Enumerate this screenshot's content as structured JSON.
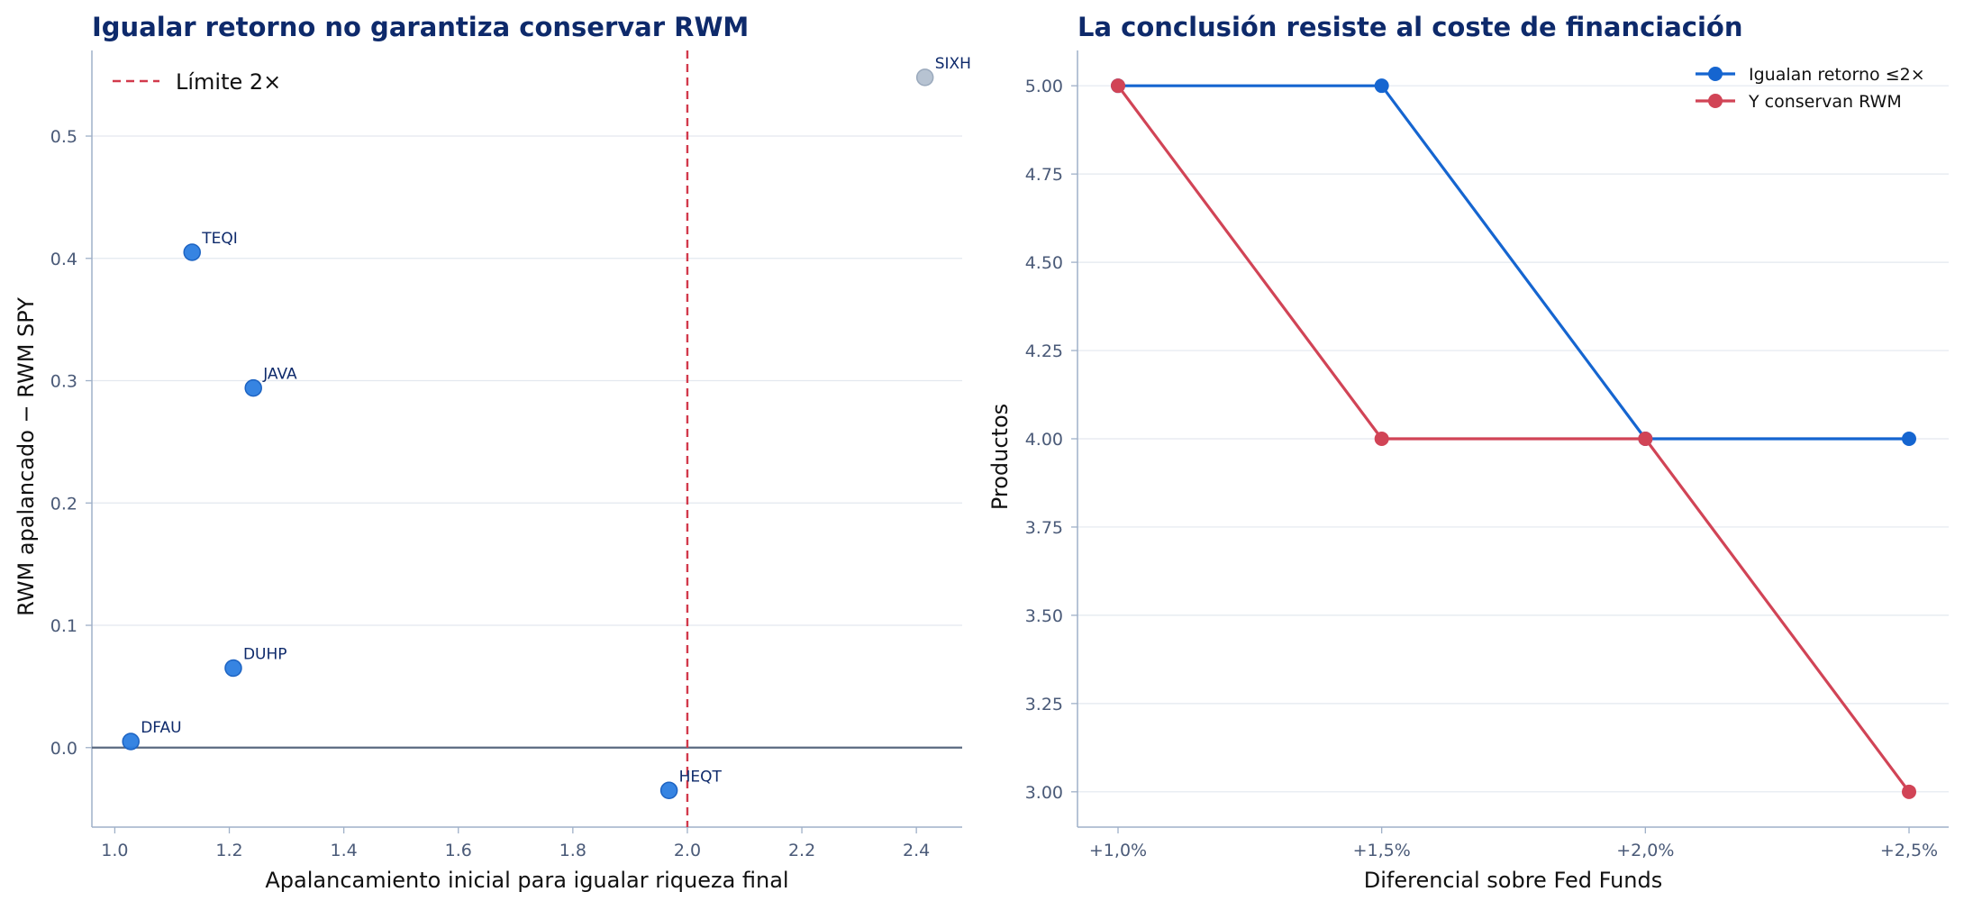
{
  "chart_data": [
    {
      "type": "scatter",
      "title": "Igualar retorno no garantiza conservar RWM",
      "xlabel": "Apalancamiento inicial para igualar riqueza final",
      "ylabel": "RWM apalancado − RWM SPY",
      "xlim": [
        0.96,
        2.48
      ],
      "ylim": [
        -0.065,
        0.57
      ],
      "xticks": [
        "1.0",
        "1.2",
        "1.4",
        "1.6",
        "1.8",
        "2.0",
        "2.2",
        "2.4"
      ],
      "yticks": [
        "0.0",
        "0.1",
        "0.2",
        "0.3",
        "0.4",
        "0.5"
      ],
      "grid": "horizontal",
      "reference_line": {
        "x": 2.0,
        "label": "Límite 2×",
        "color": "#d23a4c"
      },
      "baseline_y": 0.0,
      "legend_position": "top-left",
      "points": [
        {
          "label": "TEQI",
          "x": 1.135,
          "y": 0.405,
          "color": "#2b7de0"
        },
        {
          "label": "JAVA",
          "x": 1.242,
          "y": 0.294,
          "color": "#2b7de0"
        },
        {
          "label": "DUHP",
          "x": 1.207,
          "y": 0.065,
          "color": "#2b7de0"
        },
        {
          "label": "DFAU",
          "x": 1.028,
          "y": 0.005,
          "color": "#2b7de0"
        },
        {
          "label": "HEQT",
          "x": 1.968,
          "y": -0.035,
          "color": "#2b7de0"
        },
        {
          "label": "SIXH",
          "x": 2.415,
          "y": 0.548,
          "color": "#b3c0d0"
        }
      ]
    },
    {
      "type": "line",
      "title": "La conclusión resiste al coste de financiación",
      "xlabel": "Diferencial sobre Fed Funds",
      "ylabel": "Productos",
      "categories": [
        "+1,0%",
        "+1,5%",
        "+2,0%",
        "+2,5%"
      ],
      "ylim": [
        2.9,
        5.1
      ],
      "yticks": [
        "3.00",
        "3.25",
        "3.50",
        "3.75",
        "4.00",
        "4.25",
        "4.50",
        "4.75",
        "5.00"
      ],
      "grid": "horizontal",
      "legend_position": "top-right",
      "series": [
        {
          "name": "Igualan retorno ≤2×",
          "values": [
            5,
            5,
            4,
            4
          ],
          "color": "#1565d0"
        },
        {
          "name": "Y conservan RWM",
          "values": [
            5,
            4,
            4,
            3
          ],
          "color": "#d14456"
        }
      ]
    }
  ]
}
